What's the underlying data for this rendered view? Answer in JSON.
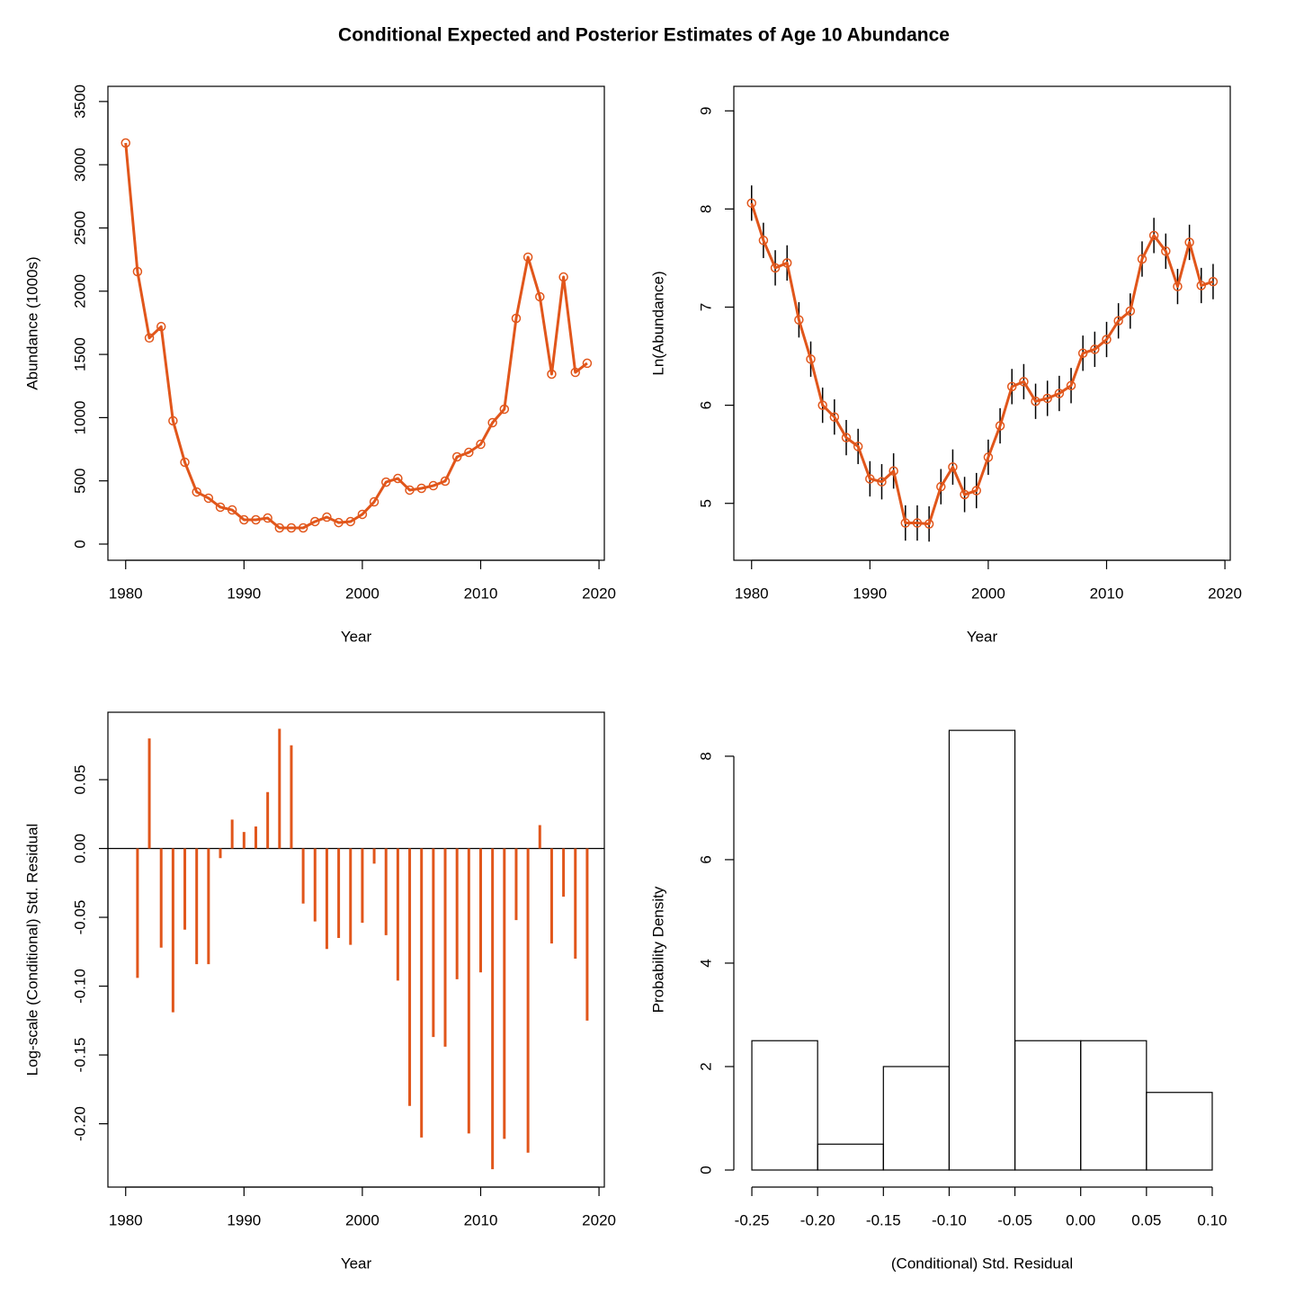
{
  "title": "Conditional Expected and Posterior Estimates of Age 10 Abundance",
  "chart_data": [
    {
      "type": "line",
      "xlabel": "Year",
      "ylabel": "Abundance (1000s)",
      "color": "#e1561b",
      "x": [
        1980,
        1981,
        1982,
        1983,
        1984,
        1985,
        1986,
        1987,
        1988,
        1989,
        1990,
        1991,
        1992,
        1993,
        1994,
        1995,
        1996,
        1997,
        1998,
        1999,
        2000,
        2001,
        2002,
        2003,
        2004,
        2005,
        2006,
        2007,
        2008,
        2009,
        2010,
        2011,
        2012,
        2013,
        2014,
        2015,
        2016,
        2017,
        2018,
        2019
      ],
      "values": [
        3172,
        2155,
        1630,
        1720,
        975,
        647,
        412,
        363,
        292,
        270,
        192,
        192,
        206,
        128,
        128,
        128,
        178,
        213,
        170,
        178,
        235,
        334,
        490,
        519,
        427,
        441,
        462,
        498,
        690,
        725,
        789,
        960,
        1067,
        1785,
        2269,
        1956,
        1344,
        2112,
        1358,
        1430
      ],
      "xlim": [
        1978.5,
        2020.45
      ],
      "xticks": [
        1980,
        1990,
        2000,
        2010,
        2020
      ],
      "ylim": [
        -128,
        3620
      ],
      "yticks": [
        0,
        500,
        1000,
        1500,
        2000,
        2500,
        3000,
        3500
      ]
    },
    {
      "type": "line",
      "xlabel": "Year",
      "ylabel": "Ln(Abundance)",
      "color": "#e1561b",
      "error_color": "#000000",
      "x": [
        1980,
        1981,
        1982,
        1983,
        1984,
        1985,
        1986,
        1987,
        1988,
        1989,
        1990,
        1991,
        1992,
        1993,
        1994,
        1995,
        1996,
        1997,
        1998,
        1999,
        2000,
        2001,
        2002,
        2003,
        2004,
        2005,
        2006,
        2007,
        2008,
        2009,
        2010,
        2011,
        2012,
        2013,
        2014,
        2015,
        2016,
        2017,
        2018,
        2019
      ],
      "values": [
        8.06,
        7.68,
        7.4,
        7.45,
        6.87,
        6.47,
        6.0,
        5.88,
        5.67,
        5.58,
        5.25,
        5.22,
        5.33,
        4.8,
        4.8,
        4.79,
        5.17,
        5.37,
        5.09,
        5.13,
        5.47,
        5.79,
        6.19,
        6.24,
        6.04,
        6.07,
        6.12,
        6.2,
        6.53,
        6.57,
        6.67,
        6.86,
        6.96,
        7.49,
        7.73,
        7.57,
        7.21,
        7.66,
        7.22,
        7.26
      ],
      "errors": [
        0.18,
        0.18,
        0.18,
        0.18,
        0.18,
        0.18,
        0.18,
        0.18,
        0.18,
        0.18,
        0.18,
        0.18,
        0.18,
        0.18,
        0.18,
        0.18,
        0.18,
        0.18,
        0.18,
        0.18,
        0.18,
        0.18,
        0.18,
        0.18,
        0.18,
        0.18,
        0.18,
        0.18,
        0.18,
        0.18,
        0.18,
        0.18,
        0.18,
        0.18,
        0.18,
        0.18,
        0.18,
        0.18,
        0.18,
        0.18
      ],
      "xlim": [
        1978.5,
        2020.45
      ],
      "xticks": [
        1980,
        1990,
        2000,
        2010,
        2020
      ],
      "ylim": [
        4.42,
        9.25
      ],
      "yticks": [
        5,
        6,
        7,
        8,
        9
      ]
    },
    {
      "type": "bar",
      "xlabel": "Year",
      "ylabel": "Log-scale (Conditional) Std. Residual",
      "color": "#e1561b",
      "x": [
        1980,
        1981,
        1982,
        1983,
        1984,
        1985,
        1986,
        1987,
        1988,
        1989,
        1990,
        1991,
        1992,
        1993,
        1994,
        1995,
        1996,
        1997,
        1998,
        1999,
        2000,
        2001,
        2002,
        2003,
        2004,
        2005,
        2006,
        2007,
        2008,
        2009,
        2010,
        2011,
        2012,
        2013,
        2014,
        2015,
        2016,
        2017,
        2018,
        2019
      ],
      "values": [
        0.0,
        -0.094,
        0.08,
        -0.072,
        -0.119,
        -0.059,
        -0.084,
        -0.084,
        -0.007,
        0.021,
        0.012,
        0.016,
        0.041,
        0.087,
        0.075,
        -0.04,
        -0.053,
        -0.073,
        -0.065,
        -0.07,
        -0.054,
        -0.011,
        -0.063,
        -0.096,
        -0.187,
        -0.21,
        -0.137,
        -0.144,
        -0.095,
        -0.207,
        -0.09,
        -0.233,
        -0.211,
        -0.052,
        -0.221,
        0.017,
        -0.069,
        -0.035,
        -0.08,
        -0.125
      ],
      "xlim": [
        1978.5,
        2020.45
      ],
      "xticks": [
        1980,
        1990,
        2000,
        2010,
        2020
      ],
      "ylim": [
        -0.246,
        0.099
      ],
      "yticks": [
        {
          "value": -0.2,
          "label": "-0.20"
        },
        -0.15,
        {
          "value": -0.1,
          "label": "-0.10"
        },
        -0.05,
        {
          "value": 0,
          "label": "0.00"
        },
        0.05
      ]
    },
    {
      "type": "histogram",
      "xlabel": "(Conditional) Std. Residual",
      "ylabel": "Probability Density",
      "bins": [
        -0.25,
        -0.2,
        -0.15,
        -0.1,
        -0.05,
        0,
        0.05,
        0.1
      ],
      "counts": [
        2.5,
        0.5,
        2,
        8.5,
        2.5,
        2.5,
        1.5
      ],
      "xlim": [
        -0.2637,
        0.1137
      ],
      "xticks": [
        -0.25,
        {
          "value": -0.2,
          "label": "-0.20"
        },
        -0.15,
        {
          "value": -0.1,
          "label": "-0.10"
        },
        -0.05,
        {
          "value": 0,
          "label": "0.00"
        },
        0.05,
        {
          "value": 0.1,
          "label": "0.10"
        }
      ],
      "ylim": [
        -0.33,
        8.85
      ],
      "yticks": [
        0,
        2,
        4,
        6,
        8
      ]
    }
  ]
}
